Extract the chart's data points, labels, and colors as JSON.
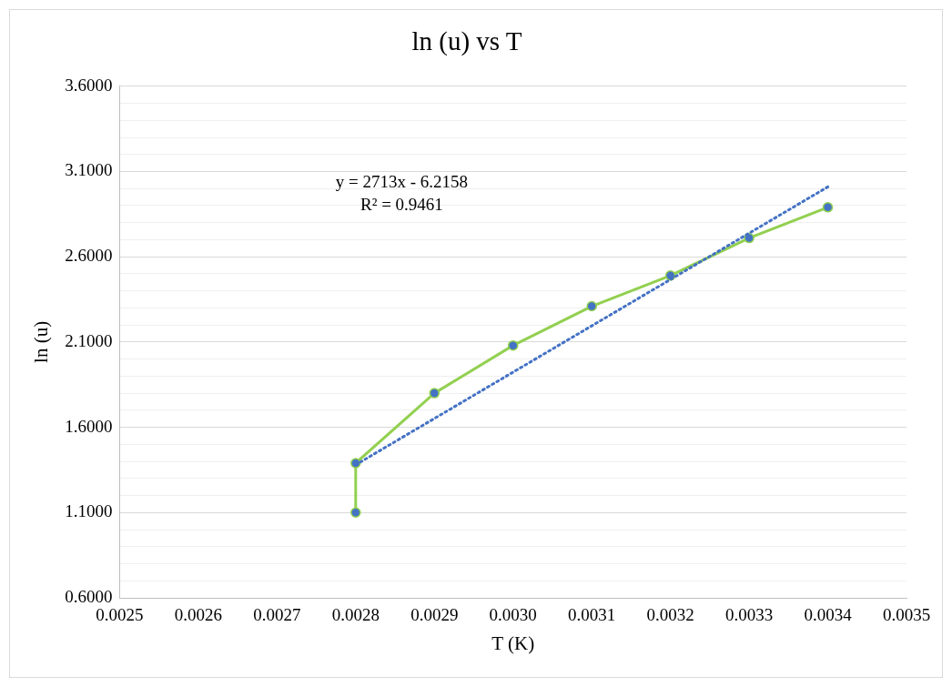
{
  "chart_data": {
    "type": "line",
    "title": "ln (u) vs T",
    "xlabel": "T (K)",
    "ylabel": "ln (u)",
    "x": [
      0.0028,
      0.0028,
      0.0029,
      0.003,
      0.0031,
      0.0032,
      0.0033,
      0.0034
    ],
    "series": [
      {
        "type": "line",
        "color": "#92d050",
        "colors": [
          "#4472c4",
          "#4472c4",
          "#4472c4",
          "#4472c4",
          "#4472c4",
          "#4472c4",
          "#4472c4",
          "#4472c4"
        ],
        "marker": "circle",
        "line_style": "solid",
        "values": [
          1.1,
          1.39,
          1.8,
          2.08,
          2.31,
          2.49,
          2.71,
          2.89
        ]
      },
      {
        "type": "line",
        "color": "#4472c4",
        "marker": "none",
        "line_style": "dotted",
        "x": [
          0.0028,
          0.0034
        ],
        "values": [
          1.38,
          3.01
        ]
      }
    ],
    "xlim": [
      0.0025,
      0.0035
    ],
    "xticks": [
      0.0025,
      0.0026,
      0.0027,
      0.0028,
      0.0029,
      {
        "value": 0.003,
        "label": "0.0030"
      },
      0.0031,
      0.0032,
      0.0033,
      0.0034,
      0.0035
    ],
    "ylim": [
      0.6,
      3.6
    ],
    "yticks": [
      {
        "value": 0.6,
        "label": "0.6000"
      },
      {
        "value": 0.7,
        "label": null
      },
      {
        "value": 0.8,
        "label": null
      },
      {
        "value": 0.9,
        "label": null
      },
      {
        "value": 1.0,
        "label": null
      },
      {
        "value": 1.1,
        "label": "1.1000"
      },
      {
        "value": 1.2,
        "label": null
      },
      {
        "value": 1.3,
        "label": null
      },
      {
        "value": 1.4,
        "label": null
      },
      {
        "value": 1.5,
        "label": null
      },
      {
        "value": 1.6,
        "label": "1.6000"
      },
      {
        "value": 1.7,
        "label": null
      },
      {
        "value": 1.8,
        "label": null
      },
      {
        "value": 1.9,
        "label": null
      },
      {
        "value": 2.0,
        "label": null
      },
      {
        "value": 2.1,
        "label": "2.1000"
      },
      {
        "value": 2.2,
        "label": null
      },
      {
        "value": 2.3,
        "label": null
      },
      {
        "value": 2.4,
        "label": null
      },
      {
        "value": 2.5,
        "label": null
      },
      {
        "value": 2.6,
        "label": "2.6000"
      },
      {
        "value": 2.7,
        "label": null
      },
      {
        "value": 2.8,
        "label": null
      },
      {
        "value": 2.9,
        "label": null
      },
      {
        "value": 3.0,
        "label": null
      },
      {
        "value": 3.1,
        "label": "3.1000"
      },
      {
        "value": 3.2,
        "label": null
      },
      {
        "value": 3.3,
        "label": null
      },
      {
        "value": 3.4,
        "label": null
      },
      {
        "value": 3.5,
        "label": null
      },
      {
        "value": 3.6,
        "label": "3.6000"
      }
    ],
    "grid": "y",
    "legend": false,
    "annotations": [
      "y = 2713x - 6.2158",
      "R² = 0.9461"
    ]
  }
}
